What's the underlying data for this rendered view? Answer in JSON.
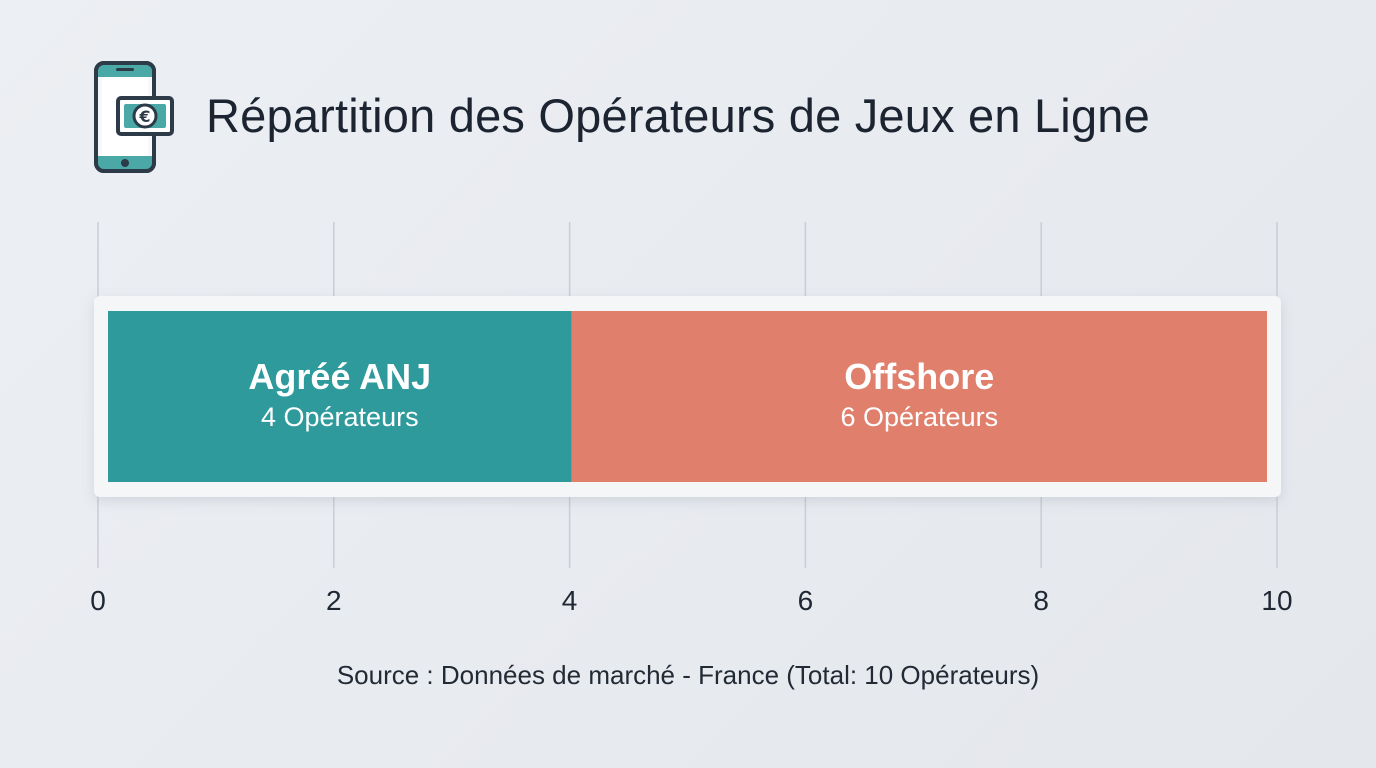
{
  "title": "Répartition des Opérateurs de Jeux en Ligne",
  "icon": "phone-euro-icon",
  "source": "Source : Données de marché - France (Total: 10 Opérateurs)",
  "colors": {
    "licensed": "#2e9a9c",
    "offshore": "#e07f6c",
    "grid": "#c9ced6",
    "icon_teal": "#4aa9a7",
    "icon_dark": "#2d3a47"
  },
  "chart_data": {
    "type": "bar",
    "orientation": "horizontal-stacked",
    "xlim": [
      0,
      10
    ],
    "ticks": [
      0,
      2,
      4,
      6,
      8,
      10
    ],
    "tick_labels": [
      "0",
      "2",
      "4",
      "6",
      "8",
      "10"
    ],
    "grid": true,
    "segments": [
      {
        "name": "Agréé ANJ",
        "value": 4,
        "label": "4 Opérateurs"
      },
      {
        "name": "Offshore",
        "value": 6,
        "label": "6 Opérateurs"
      }
    ]
  }
}
